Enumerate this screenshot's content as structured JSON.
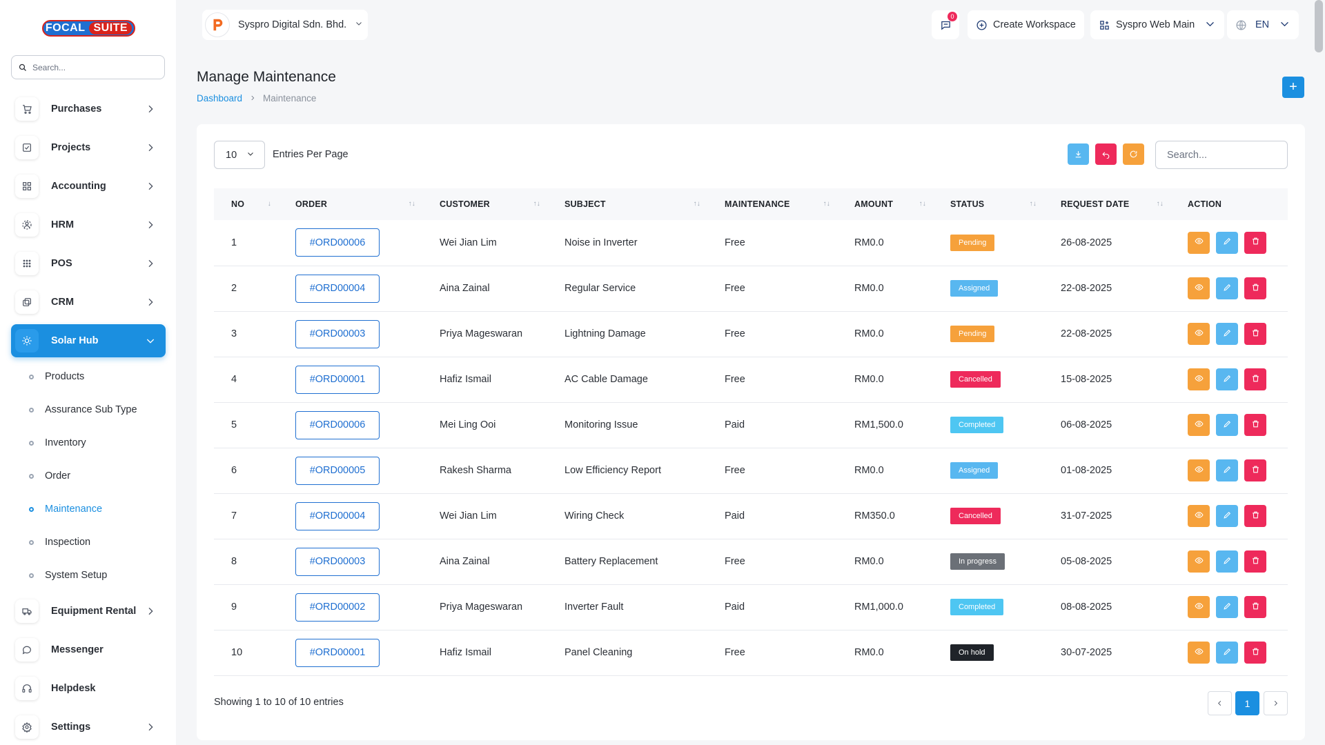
{
  "brand": {
    "part1": "FOCAL",
    "part2": "SUITE"
  },
  "sidebar": {
    "search_placeholder": "Search...",
    "items": [
      {
        "label": "Purchases",
        "icon": "cart-icon"
      },
      {
        "label": "Projects",
        "icon": "checkbox-icon"
      },
      {
        "label": "Accounting",
        "icon": "grid-icon"
      },
      {
        "label": "HRM",
        "icon": "users-icon"
      },
      {
        "label": "POS",
        "icon": "dots-grid-icon"
      },
      {
        "label": "CRM",
        "icon": "layers-icon"
      },
      {
        "label": "Solar Hub",
        "icon": "sun-icon",
        "active": true
      },
      {
        "label": "Equipment Rental",
        "icon": "truck-icon"
      },
      {
        "label": "Messenger",
        "icon": "chat-icon"
      },
      {
        "label": "Helpdesk",
        "icon": "headset-icon"
      },
      {
        "label": "Settings",
        "icon": "gear-icon"
      }
    ],
    "subitems": [
      "Products",
      "Assurance Sub Type",
      "Inventory",
      "Order",
      "Maintenance",
      "Inspection",
      "System Setup"
    ],
    "active_subitem": "Maintenance"
  },
  "topbar": {
    "company": "Syspro Digital Sdn. Bhd.",
    "notification_count": "0",
    "create_workspace": "Create Workspace",
    "workspace": "Syspro Web Main",
    "language": "EN"
  },
  "page": {
    "title": "Manage Maintenance",
    "breadcrumb": [
      "Dashboard",
      "Maintenance"
    ],
    "add_label": "+"
  },
  "table_controls": {
    "entries_value": "10",
    "entries_label": "Entries Per Page",
    "search_placeholder": "Search..."
  },
  "table": {
    "headers": [
      "NO",
      "ORDER",
      "CUSTOMER",
      "SUBJECT",
      "MAINTENANCE",
      "AMOUNT",
      "STATUS",
      "REQUEST DATE",
      "ACTION"
    ],
    "rows": [
      {
        "no": "1",
        "order": "#ORD00006",
        "customer": "Wei Jian Lim",
        "subject": "Noise in Inverter",
        "maintenance": "Free",
        "amount": "RM0.0",
        "status": "Pending",
        "date": "26-08-2025"
      },
      {
        "no": "2",
        "order": "#ORD00004",
        "customer": "Aina Zainal",
        "subject": "Regular Service",
        "maintenance": "Free",
        "amount": "RM0.0",
        "status": "Assigned",
        "date": "22-08-2025"
      },
      {
        "no": "3",
        "order": "#ORD00003",
        "customer": "Priya Mageswaran",
        "subject": "Lightning Damage",
        "maintenance": "Free",
        "amount": "RM0.0",
        "status": "Pending",
        "date": "22-08-2025"
      },
      {
        "no": "4",
        "order": "#ORD00001",
        "customer": "Hafiz Ismail",
        "subject": "AC Cable Damage",
        "maintenance": "Free",
        "amount": "RM0.0",
        "status": "Cancelled",
        "date": "15-08-2025"
      },
      {
        "no": "5",
        "order": "#ORD00006",
        "customer": "Mei Ling Ooi",
        "subject": "Monitoring Issue",
        "maintenance": "Paid",
        "amount": "RM1,500.0",
        "status": "Completed",
        "date": "06-08-2025"
      },
      {
        "no": "6",
        "order": "#ORD00005",
        "customer": "Rakesh Sharma",
        "subject": "Low Efficiency Report",
        "maintenance": "Free",
        "amount": "RM0.0",
        "status": "Assigned",
        "date": "01-08-2025"
      },
      {
        "no": "7",
        "order": "#ORD00004",
        "customer": "Wei Jian Lim",
        "subject": "Wiring Check",
        "maintenance": "Paid",
        "amount": "RM350.0",
        "status": "Cancelled",
        "date": "31-07-2025"
      },
      {
        "no": "8",
        "order": "#ORD00003",
        "customer": "Aina Zainal",
        "subject": "Battery Replacement",
        "maintenance": "Free",
        "amount": "RM0.0",
        "status": "In progress",
        "date": "05-08-2025"
      },
      {
        "no": "9",
        "order": "#ORD00002",
        "customer": "Priya Mageswaran",
        "subject": "Inverter Fault",
        "maintenance": "Paid",
        "amount": "RM1,000.0",
        "status": "Completed",
        "date": "08-08-2025"
      },
      {
        "no": "10",
        "order": "#ORD00001",
        "customer": "Hafiz Ismail",
        "subject": "Panel Cleaning",
        "maintenance": "Free",
        "amount": "RM0.0",
        "status": "On hold",
        "date": "30-07-2025"
      }
    ]
  },
  "status_colors": {
    "Pending": "#f6a13b",
    "Assigned": "#58b7f0",
    "Cancelled": "#ee2a5b",
    "Completed": "#4ec6f2",
    "In progress": "#6b7077",
    "On hold": "#1f2329"
  },
  "action_colors": {
    "view": "#f6a13b",
    "edit": "#58b7f0",
    "delete": "#ee2a5b"
  },
  "footer": {
    "showing": "Showing 1 to 10 of 10 entries",
    "current_page": "1"
  },
  "colors": {
    "accent": "#1b8fe0"
  }
}
